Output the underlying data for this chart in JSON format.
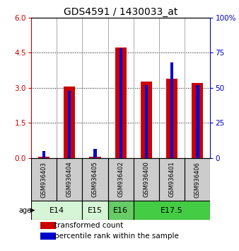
{
  "title": "GDS4591 / 1430033_at",
  "samples": [
    "GSM936403",
    "GSM936404",
    "GSM936405",
    "GSM936402",
    "GSM936400",
    "GSM936401",
    "GSM936406"
  ],
  "transformed_counts": [
    0.05,
    3.07,
    0.05,
    4.72,
    3.27,
    3.38,
    3.22
  ],
  "percentile_ranks": [
    5.0,
    48.0,
    6.5,
    78.0,
    52.0,
    68.0,
    52.0
  ],
  "age_groups": [
    {
      "label": "E14",
      "samples": [
        0,
        1
      ],
      "color": "#d6f5d6"
    },
    {
      "label": "E15",
      "samples": [
        2
      ],
      "color": "#d6f5d6"
    },
    {
      "label": "E16",
      "samples": [
        3
      ],
      "color": "#66cc66"
    },
    {
      "label": "E17.5",
      "samples": [
        4,
        5,
        6
      ],
      "color": "#44cc44"
    }
  ],
  "ylim_left": [
    0,
    6
  ],
  "ylim_right": [
    0,
    100
  ],
  "yticks_left": [
    0,
    1.5,
    3.0,
    4.5,
    6.0
  ],
  "yticks_right": [
    0,
    25,
    50,
    75,
    100
  ],
  "bar_color_red": "#cc0000",
  "bar_color_blue": "#0000cc",
  "background_color": "#ffffff",
  "sample_bg_color": "#cccccc",
  "title_fontsize": 10,
  "tick_fontsize": 7.5,
  "label_fontsize": 6,
  "age_label_fontsize": 8,
  "legend_fontsize": 7.5
}
